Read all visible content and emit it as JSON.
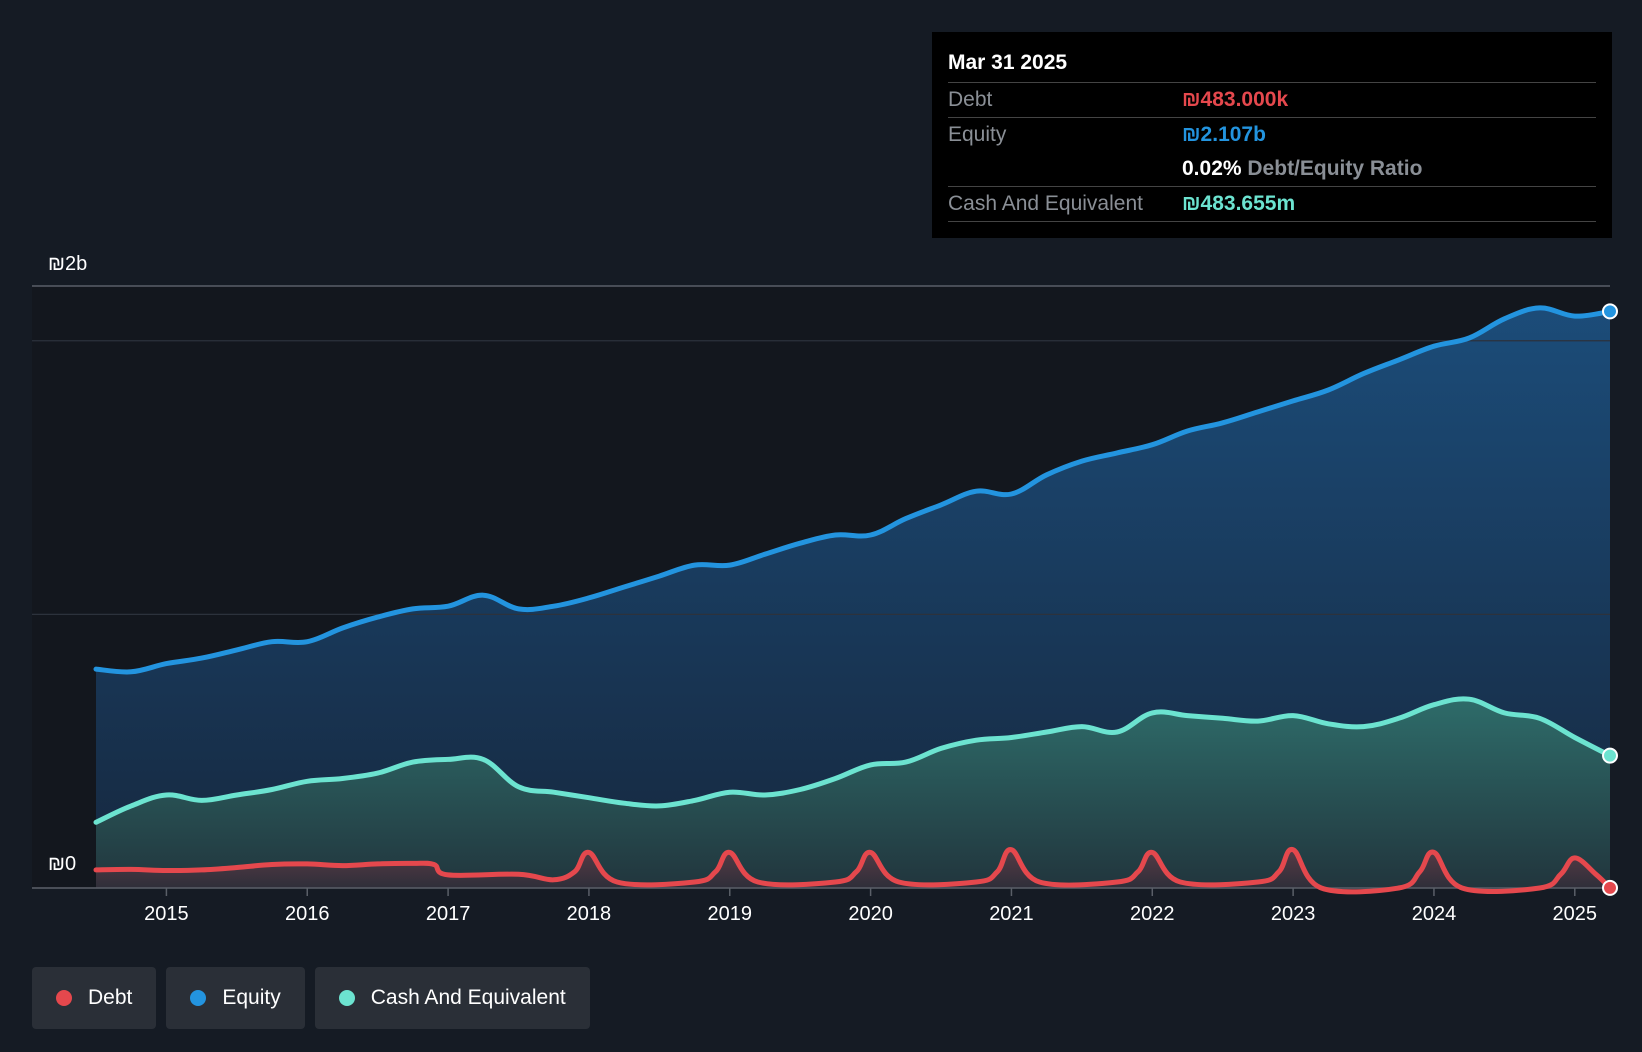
{
  "tooltip": {
    "date": "Mar 31 2025",
    "debt_label": "Debt",
    "debt_value": "₪483.000k",
    "equity_label": "Equity",
    "equity_value": "₪2.107b",
    "ratio_value": "0.02%",
    "ratio_label": "Debt/Equity Ratio",
    "cash_label": "Cash And Equivalent",
    "cash_value": "₪483.655m"
  },
  "legend": [
    {
      "label": "Debt",
      "color": "#e5484d"
    },
    {
      "label": "Equity",
      "color": "#2394df"
    },
    {
      "label": "Cash And Equivalent",
      "color": "#6ce3d0"
    }
  ],
  "chart_data": {
    "type": "area",
    "title": "",
    "xlabel": "",
    "ylabel": "",
    "y_top_label": "₪2b",
    "y_zero_label": "₪0",
    "ylim": [
      0,
      2.2
    ],
    "xlim": [
      2014.5,
      2025.25
    ],
    "x_ticks": [
      "2015",
      "2016",
      "2017",
      "2018",
      "2019",
      "2020",
      "2021",
      "2022",
      "2023",
      "2024",
      "2025"
    ],
    "colors": {
      "debt": "#e5484d",
      "equity": "#2394df",
      "cash": "#6ce3d0"
    },
    "series": [
      {
        "name": "Equity",
        "key": "equity",
        "x": [
          2014.5,
          2014.75,
          2015.0,
          2015.25,
          2015.5,
          2015.75,
          2016.0,
          2016.25,
          2016.5,
          2016.75,
          2017.0,
          2017.25,
          2017.5,
          2017.75,
          2018.0,
          2018.25,
          2018.5,
          2018.75,
          2019.0,
          2019.25,
          2019.5,
          2019.75,
          2020.0,
          2020.25,
          2020.5,
          2020.75,
          2021.0,
          2021.25,
          2021.5,
          2021.75,
          2022.0,
          2022.25,
          2022.5,
          2022.75,
          2023.0,
          2023.25,
          2023.5,
          2023.75,
          2024.0,
          2024.25,
          2024.5,
          2024.75,
          2025.0,
          2025.25
        ],
        "values": [
          0.8,
          0.79,
          0.82,
          0.84,
          0.87,
          0.9,
          0.9,
          0.95,
          0.99,
          1.02,
          1.03,
          1.07,
          1.02,
          1.03,
          1.06,
          1.1,
          1.14,
          1.18,
          1.18,
          1.22,
          1.26,
          1.29,
          1.29,
          1.35,
          1.4,
          1.45,
          1.44,
          1.51,
          1.56,
          1.59,
          1.62,
          1.67,
          1.7,
          1.74,
          1.78,
          1.82,
          1.88,
          1.93,
          1.98,
          2.01,
          2.08,
          2.12,
          2.09,
          2.107
        ]
      },
      {
        "name": "Cash And Equivalent",
        "key": "cash",
        "x": [
          2014.5,
          2014.75,
          2015.0,
          2015.25,
          2015.5,
          2015.75,
          2016.0,
          2016.25,
          2016.5,
          2016.75,
          2017.0,
          2017.25,
          2017.5,
          2017.75,
          2018.0,
          2018.25,
          2018.5,
          2018.75,
          2019.0,
          2019.25,
          2019.5,
          2019.75,
          2020.0,
          2020.25,
          2020.5,
          2020.75,
          2021.0,
          2021.25,
          2021.5,
          2021.75,
          2022.0,
          2022.25,
          2022.5,
          2022.75,
          2023.0,
          2023.25,
          2023.5,
          2023.75,
          2024.0,
          2024.25,
          2024.5,
          2024.75,
          2025.0,
          2025.25
        ],
        "values": [
          0.24,
          0.3,
          0.34,
          0.32,
          0.34,
          0.36,
          0.39,
          0.4,
          0.42,
          0.46,
          0.47,
          0.47,
          0.37,
          0.35,
          0.33,
          0.31,
          0.3,
          0.32,
          0.35,
          0.34,
          0.36,
          0.4,
          0.45,
          0.46,
          0.51,
          0.54,
          0.55,
          0.57,
          0.59,
          0.57,
          0.64,
          0.63,
          0.62,
          0.61,
          0.63,
          0.6,
          0.59,
          0.62,
          0.67,
          0.69,
          0.64,
          0.62,
          0.55,
          0.4837
        ]
      },
      {
        "name": "Debt",
        "key": "debt",
        "x": [
          2014.5,
          2014.75,
          2015.0,
          2015.25,
          2015.5,
          2015.75,
          2016.0,
          2016.25,
          2016.5,
          2016.75,
          2016.9,
          2017.0,
          2017.5,
          2017.75,
          2017.9,
          2018.0,
          2018.2,
          2018.75,
          2018.9,
          2019.0,
          2019.2,
          2019.75,
          2019.9,
          2020.0,
          2020.2,
          2020.75,
          2020.9,
          2021.0,
          2021.2,
          2021.75,
          2021.9,
          2022.0,
          2022.2,
          2022.75,
          2022.9,
          2023.0,
          2023.2,
          2023.75,
          2023.9,
          2024.0,
          2024.2,
          2024.75,
          2024.9,
          2025.0,
          2025.15,
          2025.25
        ],
        "values": [
          0.066,
          0.068,
          0.064,
          0.066,
          0.075,
          0.086,
          0.088,
          0.082,
          0.088,
          0.09,
          0.086,
          0.048,
          0.05,
          0.03,
          0.06,
          0.13,
          0.022,
          0.022,
          0.06,
          0.13,
          0.022,
          0.022,
          0.06,
          0.13,
          0.022,
          0.022,
          0.06,
          0.14,
          0.022,
          0.022,
          0.06,
          0.13,
          0.022,
          0.022,
          0.06,
          0.14,
          0.0,
          0.0,
          0.06,
          0.13,
          0.0,
          0.0,
          0.05,
          0.11,
          0.05,
          0.0005
        ]
      }
    ]
  }
}
